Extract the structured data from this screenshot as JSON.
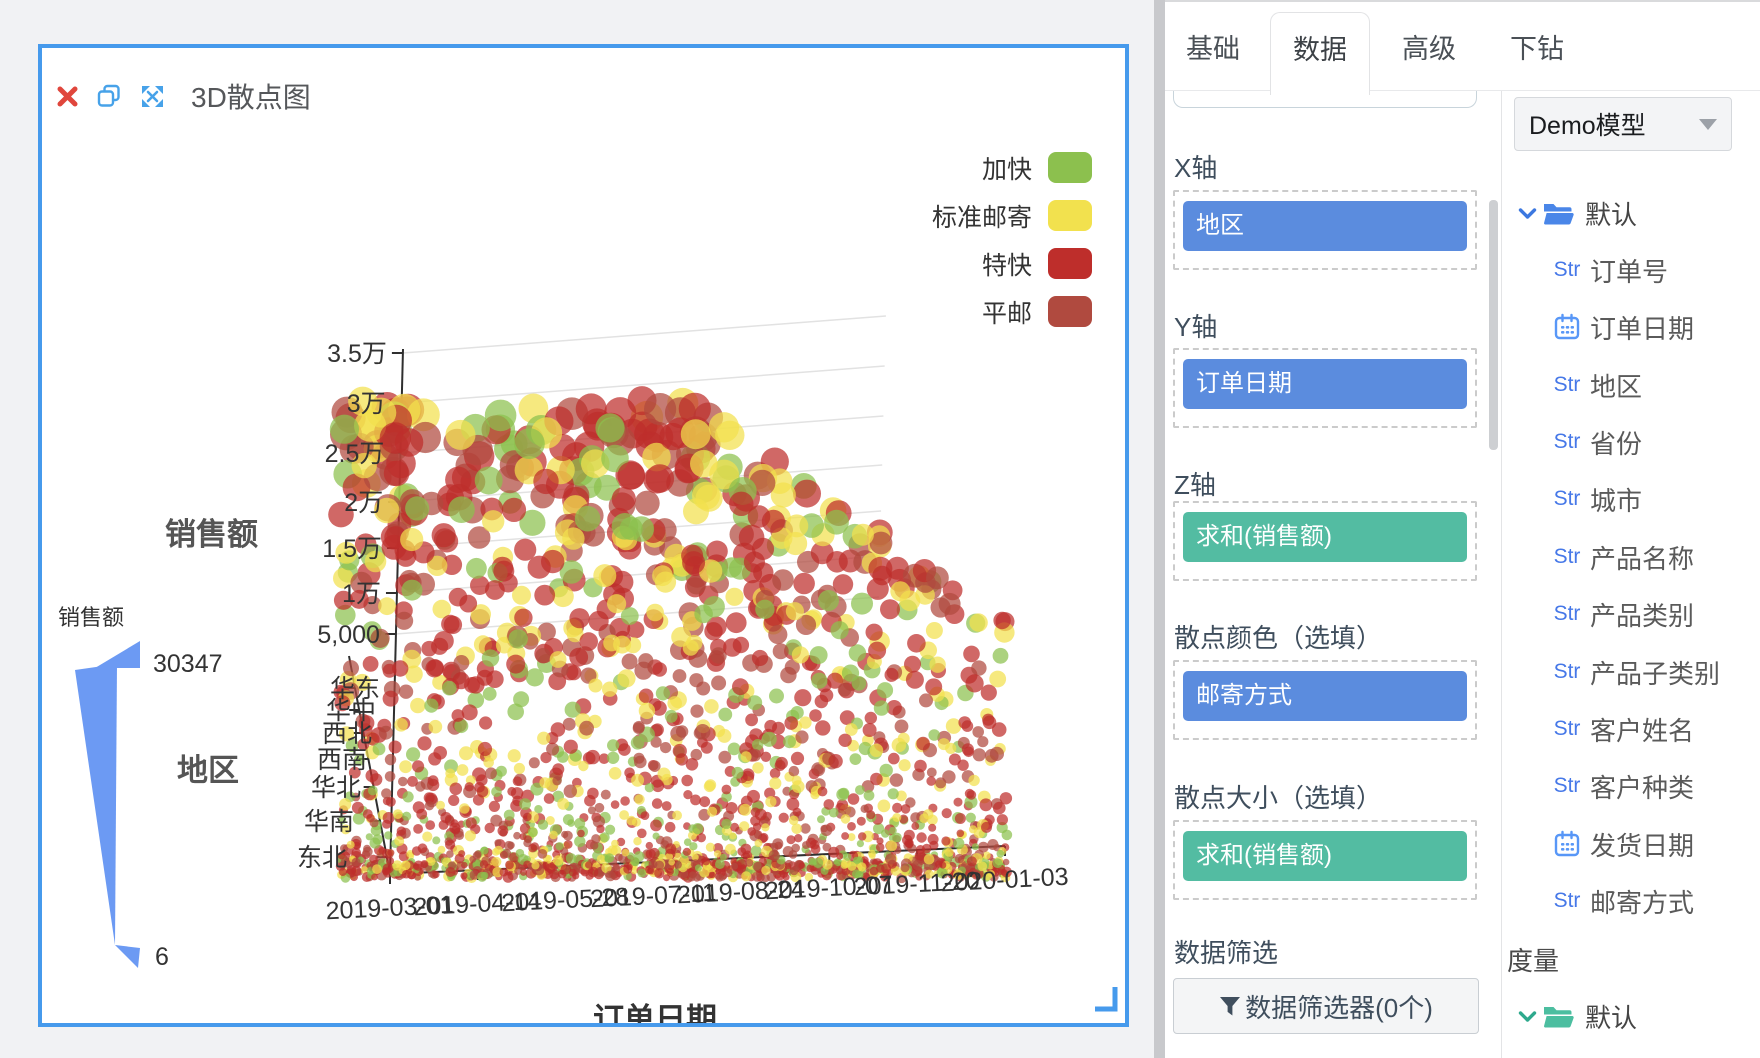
{
  "canvas": {
    "widget_title": "3D散点图"
  },
  "chart_data": {
    "type": "scatter",
    "projection": "3d",
    "title": "3D散点图",
    "legend": [
      {
        "name": "加快",
        "color": "#8CC04E"
      },
      {
        "name": "标准邮寄",
        "color": "#F2E14E"
      },
      {
        "name": "特快",
        "color": "#BE2E2B"
      },
      {
        "name": "平邮",
        "color": "#B04A3F"
      }
    ],
    "z_axis": {
      "title": "销售额",
      "ticks": [
        "3.5万",
        "3万",
        "2.5万",
        "2万",
        "1.5万",
        "1万",
        "5,000"
      ],
      "range": [
        0,
        35000
      ]
    },
    "y_axis": {
      "title": "地区",
      "ticks": [
        "华东",
        "华中",
        "西北",
        "西南",
        "华北",
        "华南",
        "东北"
      ]
    },
    "x_axis": {
      "title": "订单日期",
      "ticks": [
        "2019-03-01",
        "2019-04-14",
        "2019-05-28",
        "2019-07-11",
        "2019-08-24",
        "2019-10-07",
        "2019-11-20",
        "2020-01-03"
      ]
    },
    "size_legend": {
      "title": "销售额",
      "max": "30347",
      "min": "6",
      "color": "#6C9AF3"
    },
    "point_cloud": {
      "seed": 13,
      "count": 2200,
      "weights": {
        "特快": 0.4,
        "平邮": 0.22,
        "标准邮寄": 0.19,
        "加快": 0.19
      },
      "note": "dense 3D bubble cloud; individual points not legible in source, regenerated procedurally with size/height correlated to 销售额"
    }
  },
  "config": {
    "tabs": [
      {
        "label": "基础",
        "active": false
      },
      {
        "label": "数据",
        "active": true
      },
      {
        "label": "高级",
        "active": false
      },
      {
        "label": "下钻",
        "active": false
      }
    ],
    "sections": [
      {
        "label": "X轴",
        "chip": "地区",
        "kind": "dimension"
      },
      {
        "label": "Y轴",
        "chip": "订单日期",
        "kind": "dimension"
      },
      {
        "label": "Z轴",
        "chip": "求和(销售额)",
        "kind": "measure"
      },
      {
        "label": "散点颜色（选填）",
        "chip": "邮寄方式",
        "kind": "dimension"
      },
      {
        "label": "散点大小（选填）",
        "chip": "求和(销售额)",
        "kind": "measure"
      }
    ],
    "filter_label": "数据筛选",
    "filter_button": "数据筛选器(0个)",
    "chip_colors": {
      "dimension": "#5B8CDE",
      "measure": "#53BCA2"
    }
  },
  "fields": {
    "model": "Demo模型",
    "dimensions_folder": "默认",
    "str_badge": "Str",
    "items": [
      {
        "type": "str",
        "label": "订单号"
      },
      {
        "type": "date",
        "label": "订单日期"
      },
      {
        "type": "str",
        "label": "地区"
      },
      {
        "type": "str",
        "label": "省份"
      },
      {
        "type": "str",
        "label": "城市"
      },
      {
        "type": "str",
        "label": "产品名称"
      },
      {
        "type": "str",
        "label": "产品类别"
      },
      {
        "type": "str",
        "label": "产品子类别"
      },
      {
        "type": "str",
        "label": "客户姓名"
      },
      {
        "type": "str",
        "label": "客户种类"
      },
      {
        "type": "date",
        "label": "发货日期"
      },
      {
        "type": "str",
        "label": "邮寄方式"
      }
    ],
    "measures_header": "度量",
    "measures_folder": "默认"
  },
  "colors": {
    "panel_border": "#469AEC",
    "close_icon": "#E0463C",
    "header_icon_blue": "#47A2E9",
    "dimension_blue": "#4A86E8",
    "measure_green": "#4CBEA0",
    "axis_text": "#333333"
  }
}
